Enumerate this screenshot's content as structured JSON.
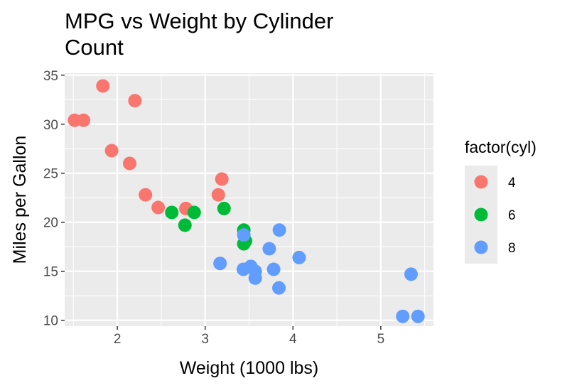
{
  "chart_data": {
    "type": "scatter",
    "title": "MPG vs Weight by Cylinder Count",
    "title_lines": [
      "MPG vs Weight by Cylinder",
      "Count"
    ],
    "xlabel": "Weight (1000 lbs)",
    "ylabel": "Miles per Gallon",
    "xlim": [
      1.4,
      5.6
    ],
    "ylim": [
      9.4,
      35.2
    ],
    "x_ticks": [
      2,
      3,
      4,
      5
    ],
    "y_ticks": [
      10,
      15,
      20,
      25,
      30,
      35
    ],
    "x_tick_labels": [
      "2",
      "3",
      "4",
      "5"
    ],
    "y_tick_labels": [
      "10",
      "15",
      "20",
      "25",
      "30",
      "35"
    ],
    "grid": true,
    "legend": {
      "title": "factor(cyl)",
      "placement": "right"
    },
    "series": [
      {
        "name": "4",
        "color": "#F8766D",
        "points": [
          {
            "x": 2.32,
            "y": 22.8
          },
          {
            "x": 3.19,
            "y": 24.4
          },
          {
            "x": 3.15,
            "y": 22.8
          },
          {
            "x": 2.2,
            "y": 32.4
          },
          {
            "x": 1.615,
            "y": 30.4
          },
          {
            "x": 1.835,
            "y": 33.9
          },
          {
            "x": 2.465,
            "y": 21.5
          },
          {
            "x": 1.935,
            "y": 27.3
          },
          {
            "x": 2.14,
            "y": 26.0
          },
          {
            "x": 1.513,
            "y": 30.4
          },
          {
            "x": 2.78,
            "y": 21.4
          }
        ]
      },
      {
        "name": "6",
        "color": "#00BA38",
        "points": [
          {
            "x": 2.62,
            "y": 21.0
          },
          {
            "x": 2.875,
            "y": 21.0
          },
          {
            "x": 3.215,
            "y": 21.4
          },
          {
            "x": 3.46,
            "y": 18.1
          },
          {
            "x": 3.44,
            "y": 19.2
          },
          {
            "x": 3.44,
            "y": 17.8
          },
          {
            "x": 2.77,
            "y": 19.7
          }
        ]
      },
      {
        "name": "8",
        "color": "#619CFF",
        "points": [
          {
            "x": 3.44,
            "y": 18.7
          },
          {
            "x": 3.57,
            "y": 14.3
          },
          {
            "x": 4.07,
            "y": 16.4
          },
          {
            "x": 3.73,
            "y": 17.3
          },
          {
            "x": 3.78,
            "y": 15.2
          },
          {
            "x": 5.25,
            "y": 10.4
          },
          {
            "x": 5.424,
            "y": 10.4
          },
          {
            "x": 5.345,
            "y": 14.7
          },
          {
            "x": 3.52,
            "y": 15.5
          },
          {
            "x": 3.435,
            "y": 15.2
          },
          {
            "x": 3.84,
            "y": 13.3
          },
          {
            "x": 3.845,
            "y": 19.2
          },
          {
            "x": 3.17,
            "y": 15.8
          },
          {
            "x": 3.57,
            "y": 15.0
          }
        ]
      }
    ]
  }
}
